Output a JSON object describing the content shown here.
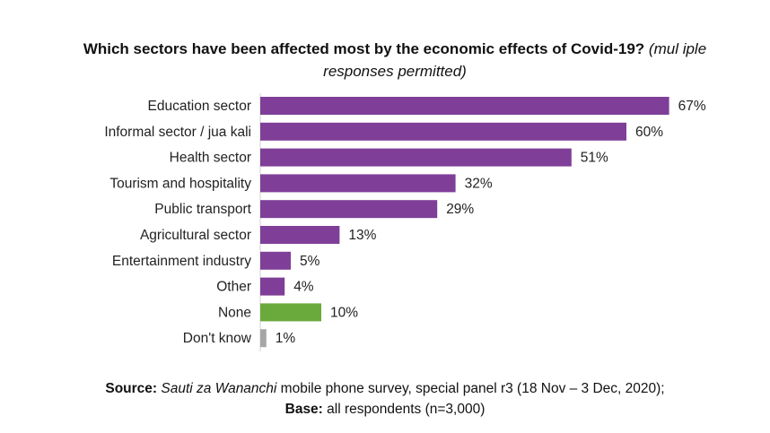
{
  "title": {
    "main": "Which sectors have been affected most by the economic effects of Covid-19?",
    "note_line1": "(mul iple",
    "note_line2": "responses permitted)"
  },
  "colors": {
    "default": "#7f3f98",
    "none": "#6aaa3c",
    "dont_know": "#a6a6a6",
    "axis": "#d0d0d0"
  },
  "chart_data": {
    "type": "bar",
    "orientation": "horizontal",
    "categories": [
      "Education sector",
      "Informal sector / jua kali",
      "Health sector",
      "Tourism and hospitality",
      "Public transport",
      "Agricultural sector",
      "Entertainment industry",
      "Other",
      "None",
      "Don't know"
    ],
    "values": [
      67,
      60,
      51,
      32,
      29,
      13,
      5,
      4,
      10,
      1
    ],
    "value_labels": [
      "67%",
      "60%",
      "51%",
      "32%",
      "29%",
      "13%",
      "5%",
      "4%",
      "10%",
      "1%"
    ],
    "bar_colors": [
      "#7f3f98",
      "#7f3f98",
      "#7f3f98",
      "#7f3f98",
      "#7f3f98",
      "#7f3f98",
      "#7f3f98",
      "#7f3f98",
      "#6aaa3c",
      "#a6a6a6"
    ],
    "xlim": [
      0,
      100
    ],
    "xlabel": "",
    "ylabel": "",
    "grid": false,
    "legend": "none"
  },
  "source": {
    "source_label": "Source:",
    "survey_name": "Sauti za Wananchi",
    "source_text": " mobile phone survey, special panel r3 (18 Nov – 3 Dec, 2020);",
    "base_label": "Base:",
    "base_text": " all respondents (n=3,000)"
  }
}
